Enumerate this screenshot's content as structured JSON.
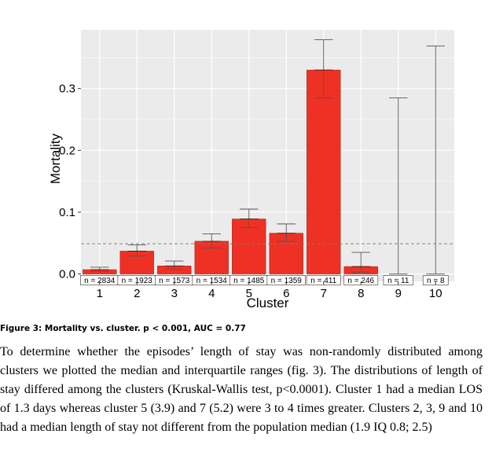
{
  "chart_data": {
    "type": "bar",
    "categories": [
      "1",
      "2",
      "3",
      "4",
      "5",
      "6",
      "7",
      "8",
      "9",
      "10"
    ],
    "values": [
      0.007,
      0.037,
      0.013,
      0.053,
      0.089,
      0.066,
      0.33,
      0.012,
      0.0,
      0.0
    ],
    "ci_low": [
      0.004,
      0.029,
      0.008,
      0.042,
      0.075,
      0.053,
      0.285,
      0.003,
      0.0,
      0.0
    ],
    "ci_high": [
      0.011,
      0.047,
      0.021,
      0.065,
      0.105,
      0.081,
      0.379,
      0.035,
      0.285,
      0.369
    ],
    "n_labels": [
      "n = 2834",
      "n = 1923",
      "n = 1573",
      "n = 1534",
      "n = 1485",
      "n = 1359",
      "n = 411",
      "n = 246",
      "n = 11",
      "n = 8"
    ],
    "reference_line": 0.049,
    "xlabel": "Cluster",
    "ylabel": "Mortality",
    "yticks": [
      0.0,
      0.1,
      0.2,
      0.3
    ],
    "ytick_labels": [
      "0.0",
      "0.1",
      "0.2",
      "0.3"
    ],
    "ylim": [
      -0.012,
      0.395
    ],
    "grid": true,
    "colors": {
      "bar": "#ee3124",
      "panel": "#ebebeb",
      "grid": "#ffffff",
      "reference": "#7a7a7a",
      "errorbar": "#555555"
    }
  },
  "caption": "Figure 3: Mortality vs. cluster. p < 0.001, AUC = 0.77",
  "paragraph": "To determine whether the episodes’ length of stay was non-randomly distributed among clusters we plotted the median and interquartile ranges (fig. 3). The distributions of length of stay differed among the clusters (Kruskal-Wallis test, p<0.0001). Cluster 1 had a median LOS of 1.3 days whereas cluster 5 (3.9) and 7 (5.2) were 3 to 4 times greater. Clusters 2, 3, 9 and 10 had a median length of stay not different from the population median (1.9 IQ 0.8; 2.5)"
}
